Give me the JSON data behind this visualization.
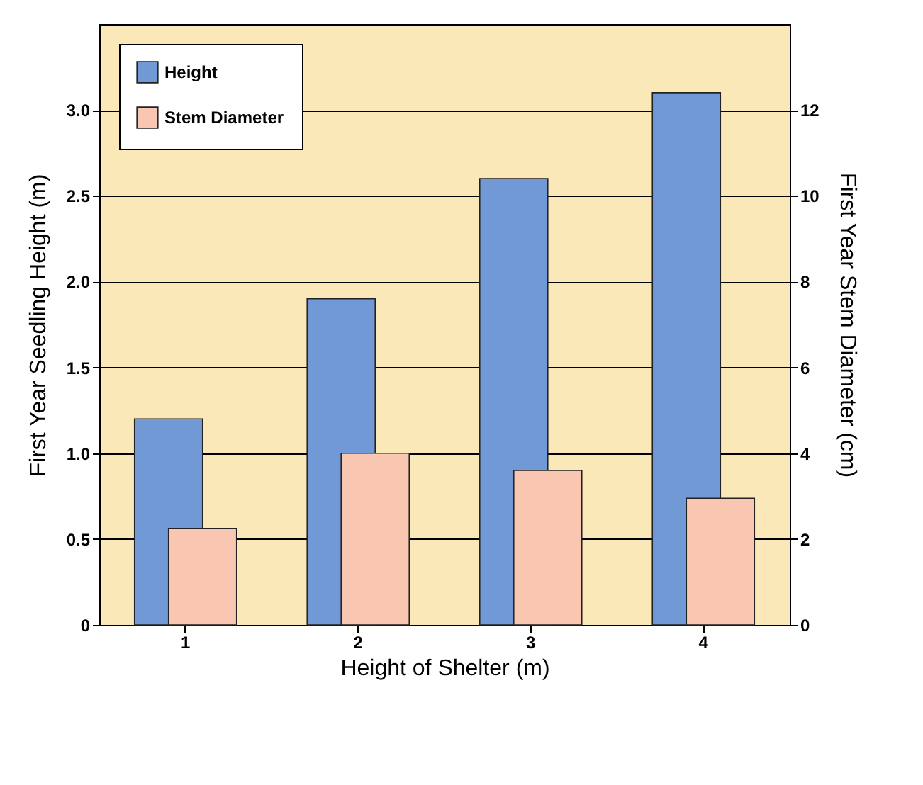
{
  "chart_data": {
    "type": "bar",
    "categories": [
      "1",
      "2",
      "3",
      "4"
    ],
    "xlabel": "Height of Shelter (m)",
    "ylabel": "First Year Seedling Height (m)",
    "y2label": "First Year Stem Diameter (cm)",
    "ylim": [
      0,
      3.5
    ],
    "yticks": [
      0,
      {
        "value": 0.5,
        "label": "0.5"
      },
      {
        "value": 1,
        "label": "1.0"
      },
      {
        "value": 1.5,
        "label": "1.5"
      },
      {
        "value": 2,
        "label": "2.0"
      },
      {
        "value": 2.5,
        "label": "2.5"
      },
      {
        "value": 3,
        "label": "3.0"
      }
    ],
    "y2lim": [
      0,
      14
    ],
    "y2ticks": [
      0,
      2,
      4,
      6,
      8,
      10,
      12
    ],
    "grid": "y",
    "legend": "top left",
    "series": [
      {
        "name": "Height",
        "color": "#7099d6",
        "values": [
          1.2,
          1.9,
          2.6,
          3.1
        ]
      },
      {
        "name": "Stem Diameter",
        "color": "#f9c7b1",
        "values": [
          2.25,
          4.0,
          3.6,
          2.95
        ],
        "axis": "y2"
      }
    ]
  }
}
